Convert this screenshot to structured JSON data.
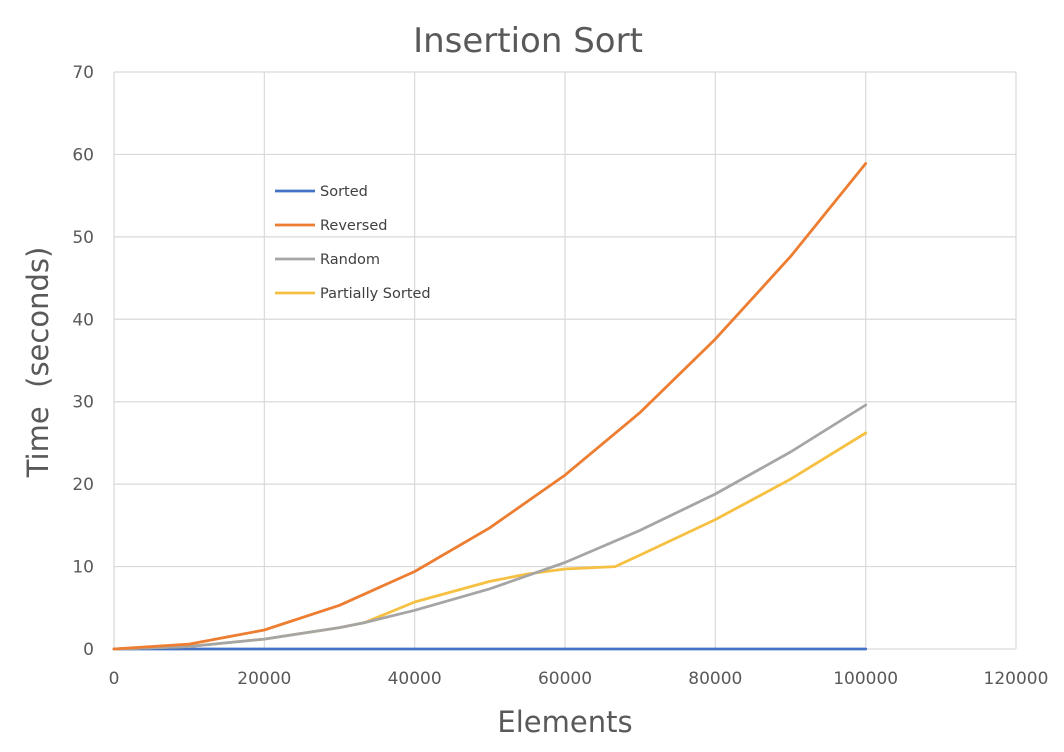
{
  "chart_data": {
    "type": "line",
    "title": "Insertion Sort",
    "xlabel": "Elements",
    "ylabel": "Time  (seconds)",
    "xlim": [
      0,
      120000
    ],
    "ylim": [
      0,
      70
    ],
    "xticks": [
      0,
      20000,
      40000,
      60000,
      80000,
      100000,
      120000
    ],
    "yticks": [
      0,
      10,
      20,
      30,
      40,
      50,
      60,
      70
    ],
    "grid": true,
    "legend_position": "upper-left inside plot",
    "series": [
      {
        "name": "Sorted",
        "color": "#4472C4",
        "points": [
          [
            0,
            0
          ],
          [
            10000,
            0
          ],
          [
            20000,
            0
          ],
          [
            30000,
            0
          ],
          [
            40000,
            0
          ],
          [
            50000,
            0
          ],
          [
            60000,
            0
          ],
          [
            70000,
            0
          ],
          [
            80000,
            0
          ],
          [
            90000,
            0
          ],
          [
            100000,
            0
          ]
        ]
      },
      {
        "name": "Reversed",
        "color": "#ED7D31",
        "points": [
          [
            0,
            0
          ],
          [
            10000,
            0.6
          ],
          [
            20000,
            2.3
          ],
          [
            30000,
            5.3
          ],
          [
            40000,
            9.4
          ],
          [
            50000,
            14.7
          ],
          [
            60000,
            21.1
          ],
          [
            70000,
            28.7
          ],
          [
            80000,
            37.6
          ],
          [
            90000,
            47.6
          ],
          [
            100000,
            58.9
          ]
        ]
      },
      {
        "name": "Random",
        "color": "#A5A5A5",
        "points": [
          [
            0,
            0
          ],
          [
            10000,
            0.3
          ],
          [
            20000,
            1.2
          ],
          [
            30000,
            2.6
          ],
          [
            33333,
            3.2
          ],
          [
            40000,
            4.7
          ],
          [
            50000,
            7.3
          ],
          [
            60000,
            10.5
          ],
          [
            70000,
            14.4
          ],
          [
            80000,
            18.8
          ],
          [
            90000,
            23.9
          ],
          [
            100000,
            29.6
          ]
        ]
      },
      {
        "name": "Partially Sorted",
        "color": "#F6C142",
        "points": [
          [
            0,
            0
          ],
          [
            10000,
            0.3
          ],
          [
            20000,
            1.2
          ],
          [
            30000,
            2.6
          ],
          [
            33333,
            3.2
          ],
          [
            40000,
            5.7
          ],
          [
            50000,
            8.2
          ],
          [
            55000,
            9.1
          ],
          [
            60000,
            9.7
          ],
          [
            66667,
            10.0
          ],
          [
            70000,
            11.4
          ],
          [
            80000,
            15.7
          ],
          [
            90000,
            20.6
          ],
          [
            100000,
            26.2
          ]
        ]
      }
    ]
  }
}
